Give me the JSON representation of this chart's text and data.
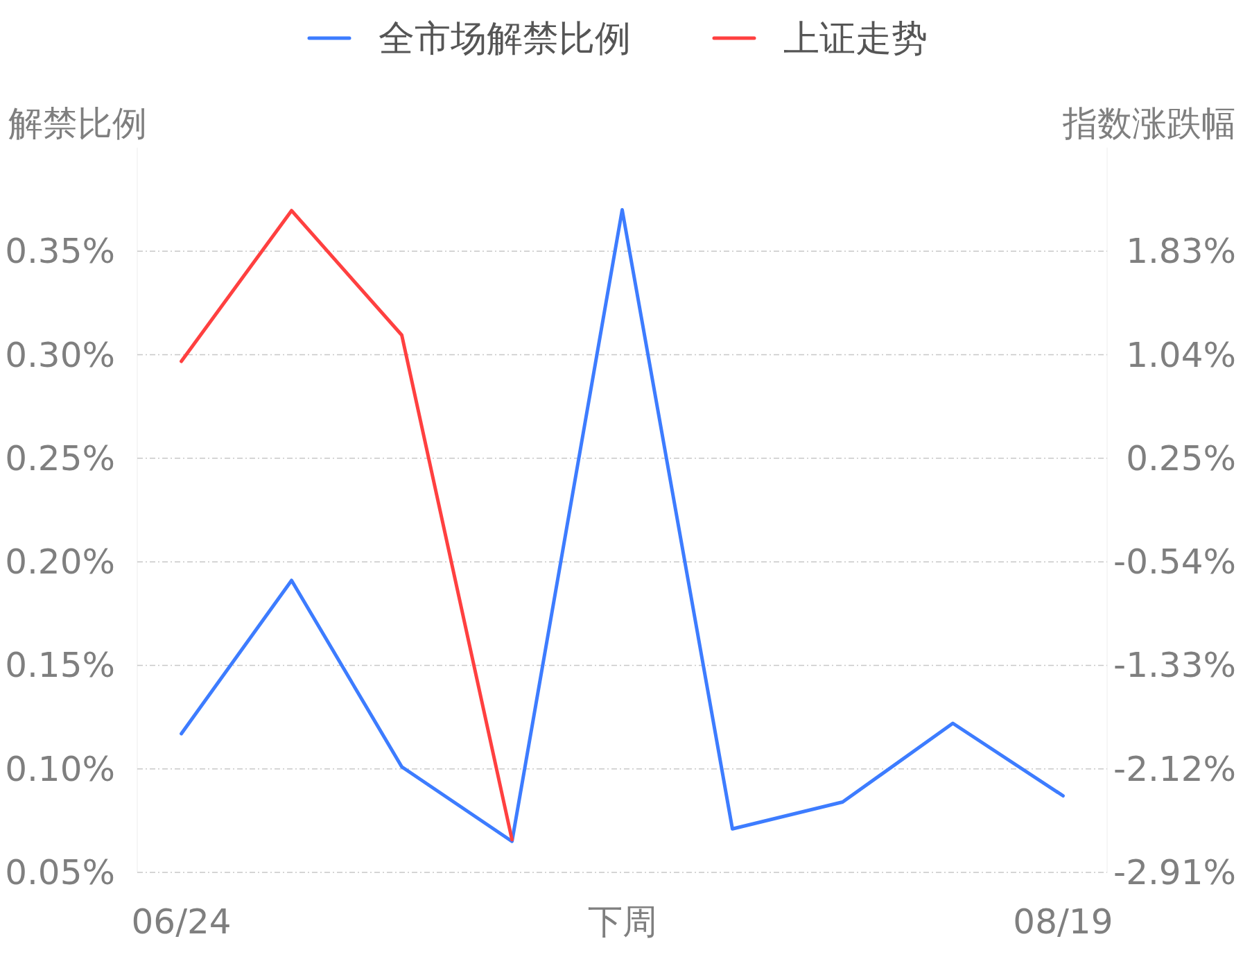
{
  "chart_data": {
    "type": "line",
    "ylabel": "解禁比例",
    "y2label": "指数涨跌幅",
    "categories": [
      "06/24",
      null,
      null,
      null,
      "下周",
      null,
      null,
      null,
      "08/19"
    ],
    "series": [
      {
        "name": "全市场解禁比例",
        "color": "#3d7cff",
        "values": [
          0.117,
          0.191,
          0.101,
          0.065,
          0.37,
          0.071,
          0.084,
          0.122,
          0.087
        ]
      },
      {
        "name": "上证走势",
        "color": "#ff4040",
        "axis": "y2",
        "values": [
          0.99,
          2.14,
          1.19,
          -2.66,
          null,
          null,
          null,
          null,
          null
        ]
      }
    ],
    "ylim": [
      0.05,
      0.4
    ],
    "yticks": [
      {
        "value": 0.05,
        "label": "0.05%"
      },
      {
        "value": 0.1,
        "label": "0.10%"
      },
      {
        "value": 0.15,
        "label": "0.15%"
      },
      {
        "value": 0.2,
        "label": "0.20%"
      },
      {
        "value": 0.25,
        "label": "0.25%"
      },
      {
        "value": 0.3,
        "label": "0.30%"
      },
      {
        "value": 0.35,
        "label": "0.35%"
      }
    ],
    "y2lim": [
      -2.91,
      2.62
    ],
    "y2ticks": [
      {
        "value": -2.91,
        "label": "-2.91%"
      },
      {
        "value": -2.12,
        "label": "-2.12%"
      },
      {
        "value": -1.33,
        "label": "-1.33%"
      },
      {
        "value": -0.54,
        "label": "-0.54%"
      },
      {
        "value": 0.25,
        "label": "0.25%"
      },
      {
        "value": 1.04,
        "label": "1.04%"
      },
      {
        "value": 1.83,
        "label": "1.83%"
      }
    ],
    "grid": "y",
    "legend": "top"
  }
}
